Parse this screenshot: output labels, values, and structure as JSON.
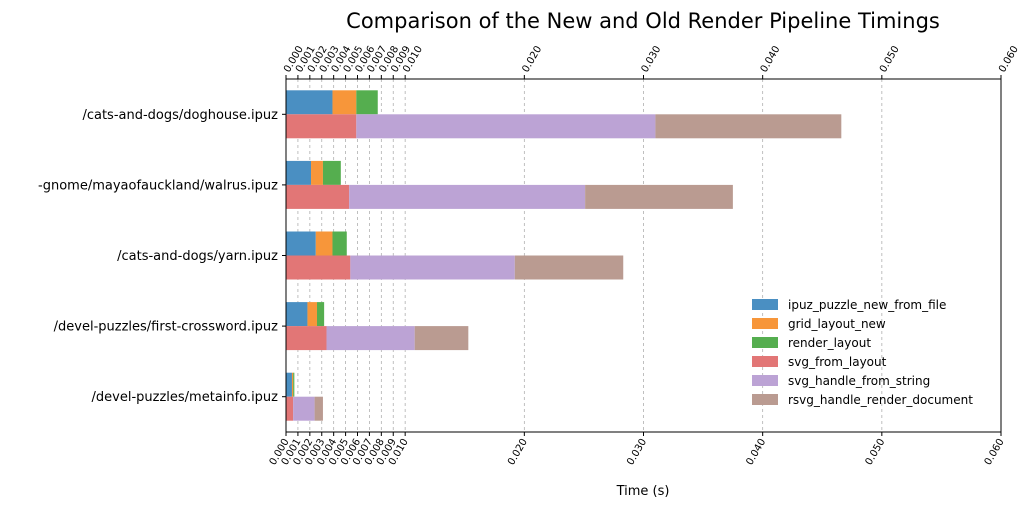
{
  "chart_data": {
    "type": "bar",
    "orientation": "horizontal",
    "stacking": "grouped-stacked",
    "title": "Comparison of the New and Old Render Pipeline Timings",
    "xlabel": "Time (s)",
    "ylabel": "",
    "xlim": [
      0,
      0.06
    ],
    "xticks": [
      0.0,
      0.001,
      0.002,
      0.003,
      0.004,
      0.005,
      0.006,
      0.007,
      0.008,
      0.009,
      0.01,
      0.02,
      0.03,
      0.04,
      0.05,
      0.06
    ],
    "xtick_labels": [
      "0.000",
      "0.001",
      "0.002",
      "0.003",
      "0.004",
      "0.005",
      "0.006",
      "0.007",
      "0.008",
      "0.009",
      "0.010",
      "0.020",
      "0.030",
      "0.040",
      "0.050",
      "0.060"
    ],
    "xticks_top_and_bottom": true,
    "grid": "vertical-dashed",
    "legend_position": "lower-right",
    "categories": [
      "/cats-and-dogs/doghouse.ipuz",
      "-gnome/mayaofauckland/walrus.ipuz",
      "/cats-and-dogs/yarn.ipuz",
      "/devel-puzzles/first-crossword.ipuz",
      "/devel-puzzles/metainfo.ipuz"
    ],
    "series": [
      {
        "name": "ipuz_puzzle_new_from_file",
        "group": "new",
        "color": "#4a8fc2",
        "values": [
          0.0039,
          0.0021,
          0.0025,
          0.0018,
          0.0005
        ]
      },
      {
        "name": "grid_layout_new",
        "group": "new",
        "color": "#f7963a",
        "values": [
          0.002,
          0.001,
          0.0014,
          0.0008,
          0.0001
        ]
      },
      {
        "name": "render_layout",
        "group": "new",
        "color": "#55ae4f",
        "values": [
          0.0018,
          0.0015,
          0.0012,
          0.0006,
          0.0001
        ]
      },
      {
        "name": "svg_from_layout",
        "group": "old",
        "color": "#e27676",
        "values": [
          0.0059,
          0.0053,
          0.0054,
          0.0034,
          0.0006
        ]
      },
      {
        "name": "svg_handle_from_string",
        "group": "old",
        "color": "#bca3d5",
        "values": [
          0.0251,
          0.0198,
          0.0138,
          0.0074,
          0.0018
        ]
      },
      {
        "name": "rsvg_handle_render_document",
        "group": "old",
        "color": "#ba9b91",
        "values": [
          0.0156,
          0.0124,
          0.0091,
          0.0045,
          0.0007
        ]
      }
    ]
  }
}
